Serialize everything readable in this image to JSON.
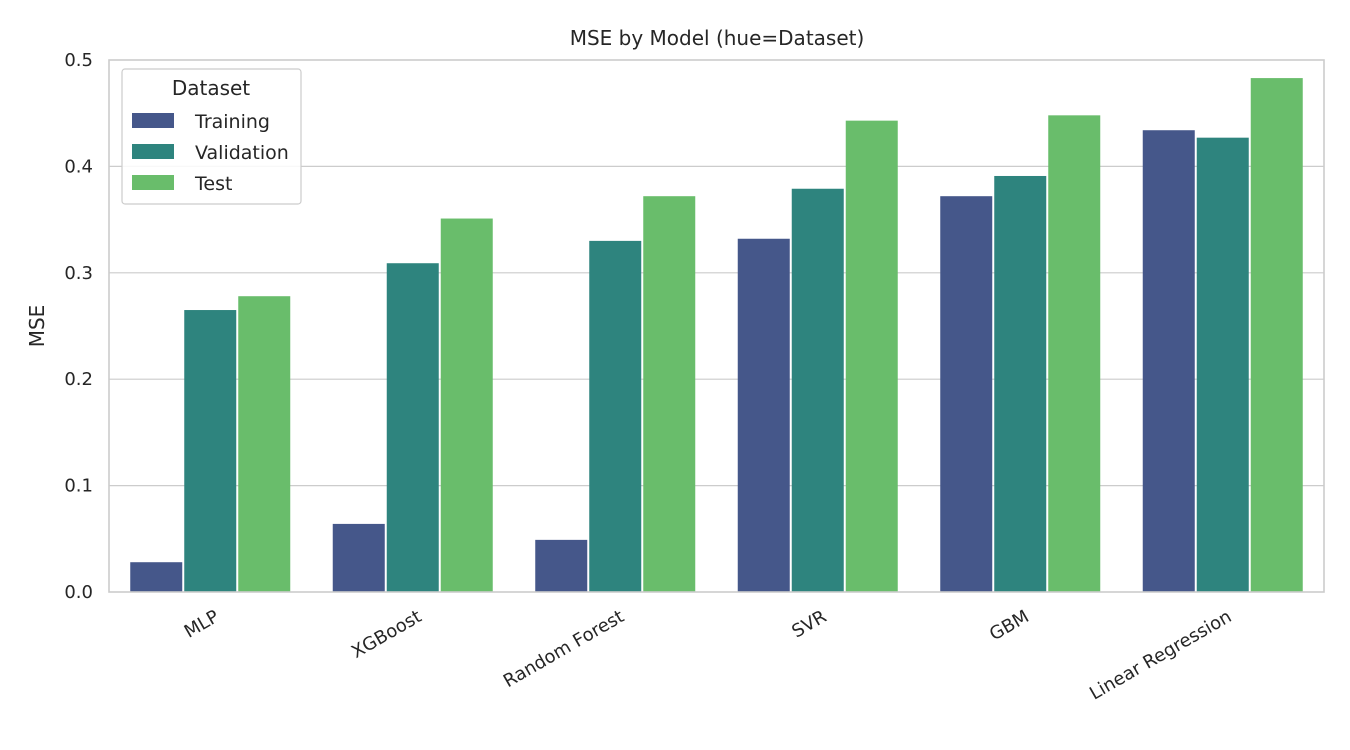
{
  "chart_data": {
    "type": "bar",
    "title": "MSE by Model (hue=Dataset)",
    "xlabel": "",
    "ylabel": "MSE",
    "ylim": [
      0,
      0.5
    ],
    "yticks": [
      "0.0",
      "0.1",
      "0.2",
      "0.3",
      "0.4",
      "0.5"
    ],
    "grid": true,
    "legend": {
      "title": "Dataset",
      "placement": "top-left"
    },
    "categories": [
      "MLP",
      "XGBoost",
      "Random Forest",
      "SVR",
      "GBM",
      "Linear Regression"
    ],
    "series": [
      {
        "name": "Training",
        "color": "#45578a",
        "values": [
          0.028,
          0.064,
          0.049,
          0.332,
          0.372,
          0.434
        ]
      },
      {
        "name": "Validation",
        "color": "#2e847e",
        "values": [
          0.265,
          0.309,
          0.33,
          0.379,
          0.391,
          0.427
        ]
      },
      {
        "name": "Test",
        "color": "#69bd6b",
        "values": [
          0.278,
          0.351,
          0.372,
          0.443,
          0.448,
          0.483
        ]
      }
    ]
  }
}
